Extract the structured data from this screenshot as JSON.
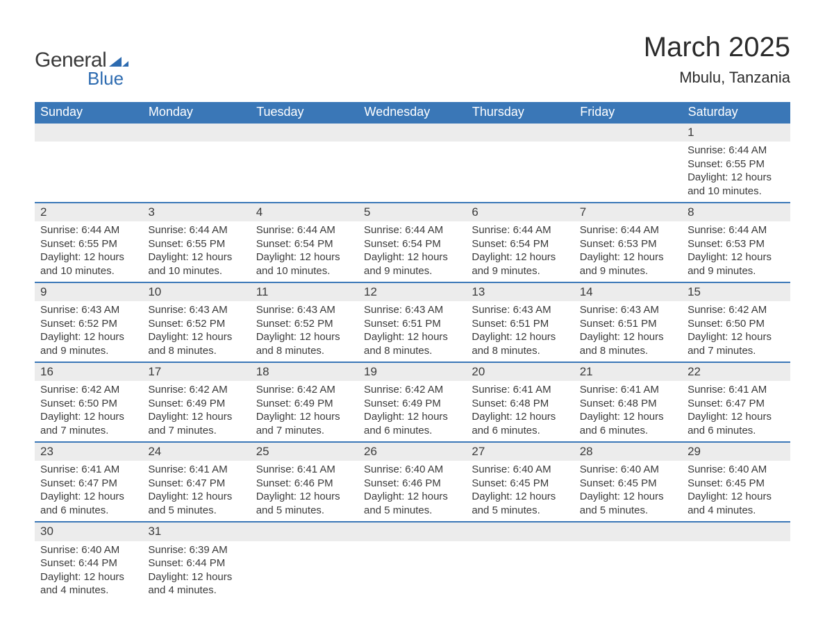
{
  "logo": {
    "text1": "General",
    "text2": "Blue",
    "color1": "#3a3a3a",
    "color2": "#2d6bb0",
    "triangle_color": "#2d6bb0"
  },
  "title": "March 2025",
  "location": "Mbulu, Tanzania",
  "header_bg": "#3a77b7",
  "header_fg": "#ffffff",
  "daynum_bg": "#ececec",
  "border_color": "#3a77b7",
  "text_color": "#3a3a3a",
  "background_color": "#ffffff",
  "day_headers": [
    "Sunday",
    "Monday",
    "Tuesday",
    "Wednesday",
    "Thursday",
    "Friday",
    "Saturday"
  ],
  "weeks": [
    [
      null,
      null,
      null,
      null,
      null,
      null,
      {
        "n": "1",
        "sr": "Sunrise: 6:44 AM",
        "ss": "Sunset: 6:55 PM",
        "dl": "Daylight: 12 hours and 10 minutes."
      }
    ],
    [
      {
        "n": "2",
        "sr": "Sunrise: 6:44 AM",
        "ss": "Sunset: 6:55 PM",
        "dl": "Daylight: 12 hours and 10 minutes."
      },
      {
        "n": "3",
        "sr": "Sunrise: 6:44 AM",
        "ss": "Sunset: 6:55 PM",
        "dl": "Daylight: 12 hours and 10 minutes."
      },
      {
        "n": "4",
        "sr": "Sunrise: 6:44 AM",
        "ss": "Sunset: 6:54 PM",
        "dl": "Daylight: 12 hours and 10 minutes."
      },
      {
        "n": "5",
        "sr": "Sunrise: 6:44 AM",
        "ss": "Sunset: 6:54 PM",
        "dl": "Daylight: 12 hours and 9 minutes."
      },
      {
        "n": "6",
        "sr": "Sunrise: 6:44 AM",
        "ss": "Sunset: 6:54 PM",
        "dl": "Daylight: 12 hours and 9 minutes."
      },
      {
        "n": "7",
        "sr": "Sunrise: 6:44 AM",
        "ss": "Sunset: 6:53 PM",
        "dl": "Daylight: 12 hours and 9 minutes."
      },
      {
        "n": "8",
        "sr": "Sunrise: 6:44 AM",
        "ss": "Sunset: 6:53 PM",
        "dl": "Daylight: 12 hours and 9 minutes."
      }
    ],
    [
      {
        "n": "9",
        "sr": "Sunrise: 6:43 AM",
        "ss": "Sunset: 6:52 PM",
        "dl": "Daylight: 12 hours and 9 minutes."
      },
      {
        "n": "10",
        "sr": "Sunrise: 6:43 AM",
        "ss": "Sunset: 6:52 PM",
        "dl": "Daylight: 12 hours and 8 minutes."
      },
      {
        "n": "11",
        "sr": "Sunrise: 6:43 AM",
        "ss": "Sunset: 6:52 PM",
        "dl": "Daylight: 12 hours and 8 minutes."
      },
      {
        "n": "12",
        "sr": "Sunrise: 6:43 AM",
        "ss": "Sunset: 6:51 PM",
        "dl": "Daylight: 12 hours and 8 minutes."
      },
      {
        "n": "13",
        "sr": "Sunrise: 6:43 AM",
        "ss": "Sunset: 6:51 PM",
        "dl": "Daylight: 12 hours and 8 minutes."
      },
      {
        "n": "14",
        "sr": "Sunrise: 6:43 AM",
        "ss": "Sunset: 6:51 PM",
        "dl": "Daylight: 12 hours and 8 minutes."
      },
      {
        "n": "15",
        "sr": "Sunrise: 6:42 AM",
        "ss": "Sunset: 6:50 PM",
        "dl": "Daylight: 12 hours and 7 minutes."
      }
    ],
    [
      {
        "n": "16",
        "sr": "Sunrise: 6:42 AM",
        "ss": "Sunset: 6:50 PM",
        "dl": "Daylight: 12 hours and 7 minutes."
      },
      {
        "n": "17",
        "sr": "Sunrise: 6:42 AM",
        "ss": "Sunset: 6:49 PM",
        "dl": "Daylight: 12 hours and 7 minutes."
      },
      {
        "n": "18",
        "sr": "Sunrise: 6:42 AM",
        "ss": "Sunset: 6:49 PM",
        "dl": "Daylight: 12 hours and 7 minutes."
      },
      {
        "n": "19",
        "sr": "Sunrise: 6:42 AM",
        "ss": "Sunset: 6:49 PM",
        "dl": "Daylight: 12 hours and 6 minutes."
      },
      {
        "n": "20",
        "sr": "Sunrise: 6:41 AM",
        "ss": "Sunset: 6:48 PM",
        "dl": "Daylight: 12 hours and 6 minutes."
      },
      {
        "n": "21",
        "sr": "Sunrise: 6:41 AM",
        "ss": "Sunset: 6:48 PM",
        "dl": "Daylight: 12 hours and 6 minutes."
      },
      {
        "n": "22",
        "sr": "Sunrise: 6:41 AM",
        "ss": "Sunset: 6:47 PM",
        "dl": "Daylight: 12 hours and 6 minutes."
      }
    ],
    [
      {
        "n": "23",
        "sr": "Sunrise: 6:41 AM",
        "ss": "Sunset: 6:47 PM",
        "dl": "Daylight: 12 hours and 6 minutes."
      },
      {
        "n": "24",
        "sr": "Sunrise: 6:41 AM",
        "ss": "Sunset: 6:47 PM",
        "dl": "Daylight: 12 hours and 5 minutes."
      },
      {
        "n": "25",
        "sr": "Sunrise: 6:41 AM",
        "ss": "Sunset: 6:46 PM",
        "dl": "Daylight: 12 hours and 5 minutes."
      },
      {
        "n": "26",
        "sr": "Sunrise: 6:40 AM",
        "ss": "Sunset: 6:46 PM",
        "dl": "Daylight: 12 hours and 5 minutes."
      },
      {
        "n": "27",
        "sr": "Sunrise: 6:40 AM",
        "ss": "Sunset: 6:45 PM",
        "dl": "Daylight: 12 hours and 5 minutes."
      },
      {
        "n": "28",
        "sr": "Sunrise: 6:40 AM",
        "ss": "Sunset: 6:45 PM",
        "dl": "Daylight: 12 hours and 5 minutes."
      },
      {
        "n": "29",
        "sr": "Sunrise: 6:40 AM",
        "ss": "Sunset: 6:45 PM",
        "dl": "Daylight: 12 hours and 4 minutes."
      }
    ],
    [
      {
        "n": "30",
        "sr": "Sunrise: 6:40 AM",
        "ss": "Sunset: 6:44 PM",
        "dl": "Daylight: 12 hours and 4 minutes."
      },
      {
        "n": "31",
        "sr": "Sunrise: 6:39 AM",
        "ss": "Sunset: 6:44 PM",
        "dl": "Daylight: 12 hours and 4 minutes."
      },
      null,
      null,
      null,
      null,
      null
    ]
  ]
}
